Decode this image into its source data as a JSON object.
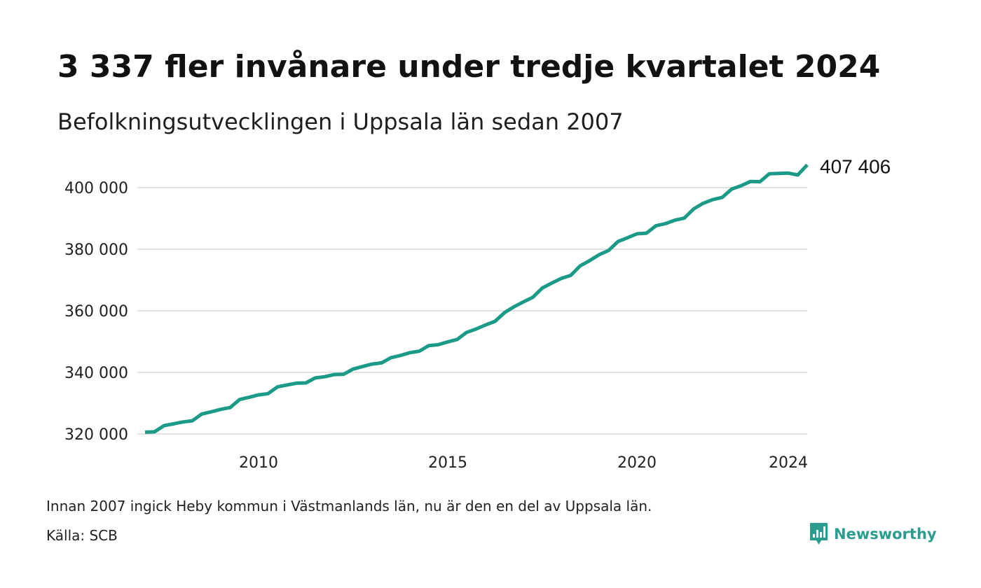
{
  "title": "3 337 fler invånare under tredje kvartalet 2024",
  "subtitle": "Befolkningsutvecklingen i Uppsala län sedan 2007",
  "footnote": "Innan 2007 ingick Heby kommun i Västmanlands län, nu är den en del av Uppsala län.",
  "source": "Källa: SCB",
  "brand": {
    "name": "Newsworthy",
    "icon": "newsworthy-logo-icon",
    "color": "#2c9c8f"
  },
  "chart_data": {
    "type": "line",
    "line_color": "#1c9a88",
    "grid": true,
    "y_ticks": [
      320000,
      340000,
      360000,
      380000,
      400000
    ],
    "y_tick_labels": [
      "320 000",
      "340 000",
      "360 000",
      "380 000",
      "400 000"
    ],
    "ylim": [
      320000,
      407406
    ],
    "x_ticks": [
      2010,
      2015,
      2020,
      2024
    ],
    "x_tick_labels": [
      "2010",
      "2015",
      "2020",
      "2024"
    ],
    "xlim": [
      2007.0,
      2024.5
    ],
    "end_label": "407 406",
    "series": [
      {
        "values": [
          [
            2007.0,
            320600
          ],
          [
            2007.25,
            320700
          ],
          [
            2007.5,
            322700
          ],
          [
            2007.75,
            323300
          ],
          [
            2008.0,
            323900
          ],
          [
            2008.25,
            324300
          ],
          [
            2008.5,
            326500
          ],
          [
            2008.75,
            327200
          ],
          [
            2009.0,
            328000
          ],
          [
            2009.25,
            328600
          ],
          [
            2009.5,
            331200
          ],
          [
            2009.75,
            331900
          ],
          [
            2010.0,
            332700
          ],
          [
            2010.25,
            333100
          ],
          [
            2010.5,
            335300
          ],
          [
            2010.75,
            335900
          ],
          [
            2011.0,
            336500
          ],
          [
            2011.25,
            336600
          ],
          [
            2011.5,
            338200
          ],
          [
            2011.75,
            338600
          ],
          [
            2012.0,
            339300
          ],
          [
            2012.25,
            339400
          ],
          [
            2012.5,
            341100
          ],
          [
            2012.75,
            341900
          ],
          [
            2013.0,
            342700
          ],
          [
            2013.25,
            343100
          ],
          [
            2013.5,
            344800
          ],
          [
            2013.75,
            345500
          ],
          [
            2014.0,
            346400
          ],
          [
            2014.25,
            346900
          ],
          [
            2014.5,
            348700
          ],
          [
            2014.75,
            349000
          ],
          [
            2015.0,
            349900
          ],
          [
            2015.25,
            350700
          ],
          [
            2015.5,
            353000
          ],
          [
            2015.75,
            354100
          ],
          [
            2016.0,
            355400
          ],
          [
            2016.25,
            356600
          ],
          [
            2016.5,
            359400
          ],
          [
            2016.75,
            361300
          ],
          [
            2017.0,
            362900
          ],
          [
            2017.25,
            364400
          ],
          [
            2017.5,
            367400
          ],
          [
            2017.75,
            369000
          ],
          [
            2018.0,
            370500
          ],
          [
            2018.25,
            371500
          ],
          [
            2018.5,
            374600
          ],
          [
            2018.75,
            376300
          ],
          [
            2019.0,
            378200
          ],
          [
            2019.25,
            379600
          ],
          [
            2019.5,
            382500
          ],
          [
            2019.75,
            383700
          ],
          [
            2020.0,
            385000
          ],
          [
            2020.25,
            385200
          ],
          [
            2020.5,
            387600
          ],
          [
            2020.75,
            388300
          ],
          [
            2021.0,
            389400
          ],
          [
            2021.25,
            390100
          ],
          [
            2021.5,
            393100
          ],
          [
            2021.75,
            394900
          ],
          [
            2022.0,
            396100
          ],
          [
            2022.25,
            396800
          ],
          [
            2022.5,
            399500
          ],
          [
            2022.75,
            400600
          ],
          [
            2023.0,
            402000
          ],
          [
            2023.25,
            401900
          ],
          [
            2023.5,
            404500
          ],
          [
            2023.75,
            404600
          ],
          [
            2024.0,
            404700
          ],
          [
            2024.25,
            404100
          ],
          [
            2024.5,
            407406
          ]
        ]
      }
    ]
  }
}
